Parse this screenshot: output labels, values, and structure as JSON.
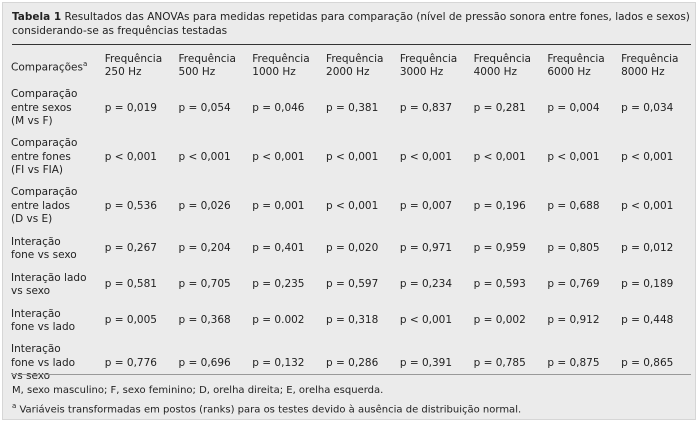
{
  "caption": {
    "label": "Tabela 1",
    "text": " Resultados das ANOVAs para medidas repetidas para comparação (nível de pressão sonora entre fones, lados e sexos) considerando-se as frequências testadas"
  },
  "table": {
    "first_header": "Comparações",
    "first_header_sup": "a",
    "headers": [
      [
        "Frequência",
        "250 Hz"
      ],
      [
        "Frequência",
        "500 Hz"
      ],
      [
        "Frequência",
        "1000 Hz"
      ],
      [
        "Frequência",
        "2000 Hz"
      ],
      [
        "Frequência",
        "3000 Hz"
      ],
      [
        "Frequência",
        "4000 Hz"
      ],
      [
        "Frequência",
        "6000 Hz"
      ],
      [
        "Frequência",
        "8000 Hz"
      ]
    ],
    "rows": [
      {
        "label": [
          "Comparação",
          "entre sexos",
          "(M vs F)"
        ],
        "values": [
          "p = 0,019",
          "p = 0,054",
          "p = 0,046",
          "p = 0,381",
          "p = 0,837",
          "p = 0,281",
          "p = 0,004",
          "p = 0,034"
        ]
      },
      {
        "label": [
          "Comparação",
          "entre fones",
          "(FI vs FIA)"
        ],
        "values": [
          "p < 0,001",
          "p < 0,001",
          "p < 0,001",
          "p < 0,001",
          "p < 0,001",
          "p < 0,001",
          "p < 0,001",
          "p < 0,001"
        ]
      },
      {
        "label": [
          "Comparação",
          "entre lados",
          "(D vs E)"
        ],
        "values": [
          "p = 0,536",
          "p = 0,026",
          "p = 0,001",
          "p < 0,001",
          "p = 0,007",
          "p = 0,196",
          "p = 0,688",
          "p < 0,001"
        ]
      },
      {
        "label": [
          "Interação",
          "fone vs sexo"
        ],
        "values": [
          "p = 0,267",
          "p = 0,204",
          "p = 0,401",
          "p = 0,020",
          "p = 0,971",
          "p = 0,959",
          "p = 0,805",
          "p = 0,012"
        ]
      },
      {
        "label": [
          "Interação lado",
          "vs sexo"
        ],
        "values": [
          "p = 0,581",
          "p = 0,705",
          "p = 0,235",
          "p = 0,597",
          "p = 0,234",
          "p = 0,593",
          "p = 0,769",
          "p = 0,189"
        ]
      },
      {
        "label": [
          "Interação",
          "fone vs lado"
        ],
        "values": [
          "p = 0,005",
          "p = 0,368",
          "p = 0.002",
          "p = 0,318",
          "p < 0,001",
          "p = 0,002",
          "p = 0,912",
          "p = 0,448"
        ]
      },
      {
        "label": [
          "Interação",
          "fone vs lado",
          "vs sexo"
        ],
        "values": [
          "p = 0,776",
          "p = 0,696",
          "p = 0,132",
          "p = 0,286",
          "p = 0,391",
          "p = 0,785",
          "p = 0,875",
          "p = 0,865"
        ]
      }
    ]
  },
  "notes": {
    "abbrev": "M, sexo masculino; F, sexo feminino; D, orelha direita; E, orelha esquerda.",
    "footnote_sup": "a",
    "footnote": " Variáveis transformadas em postos (ranks) para os testes devido à ausência de distribuição normal."
  }
}
